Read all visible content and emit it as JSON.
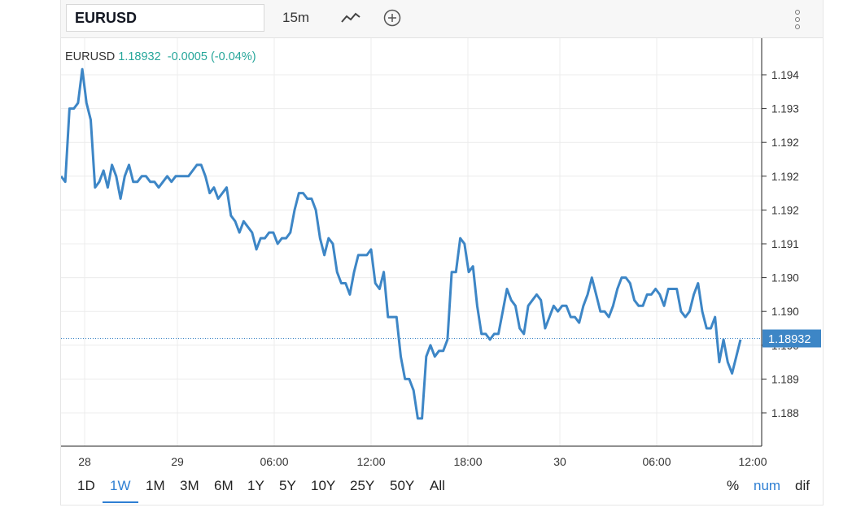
{
  "toolbar": {
    "symbol_value": "EURUSD",
    "interval": "15m",
    "icons": [
      "line-chart-icon",
      "plus-circle-icon",
      "more-vertical-icon"
    ]
  },
  "legend": {
    "symbol": "EURUSD",
    "price": "1.18932",
    "change": "-0.0005 (-0.04%)"
  },
  "price_label": "1.18932",
  "ranges": [
    "1D",
    "1W",
    "1M",
    "3M",
    "6M",
    "1Y",
    "5Y",
    "10Y",
    "25Y",
    "50Y",
    "All"
  ],
  "active_range": "1W",
  "modes": [
    "%",
    "num",
    "dif"
  ],
  "active_mode": "num",
  "colors": {
    "line": "#3d86c6",
    "change_text": "#26a69a",
    "active": "#2e7fd3",
    "price_tag": "#3d86c6"
  },
  "chart_data": {
    "type": "line",
    "series": [
      {
        "values": [
          1.1922,
          1.1921,
          1.1934,
          1.1934,
          1.1935,
          1.1941,
          1.1935,
          1.1932,
          1.192,
          1.1921,
          1.1923,
          1.192,
          1.1924,
          1.1922,
          1.1918,
          1.1922,
          1.1924,
          1.1921,
          1.1921,
          1.1922,
          1.1922,
          1.1921,
          1.1921,
          1.192,
          1.1921,
          1.1922,
          1.1921,
          1.1922,
          1.1922,
          1.1922,
          1.1922,
          1.1923,
          1.1924,
          1.1924,
          1.1922,
          1.1919,
          1.192,
          1.1918,
          1.1919,
          1.192,
          1.1915,
          1.1914,
          1.1912,
          1.1914,
          1.1913,
          1.1912,
          1.1909,
          1.1911,
          1.1911,
          1.1912,
          1.1912,
          1.191,
          1.1911,
          1.1911,
          1.1912,
          1.1916,
          1.1919,
          1.1919,
          1.1918,
          1.1918,
          1.1916,
          1.1911,
          1.1908,
          1.1911,
          1.191,
          1.1905,
          1.1903,
          1.1903,
          1.1901,
          1.1905,
          1.1908,
          1.1908,
          1.1908,
          1.1909,
          1.1903,
          1.1902,
          1.1905,
          1.1897,
          1.1897,
          1.1897,
          1.189,
          1.1886,
          1.1886,
          1.1884,
          1.1879,
          1.1879,
          1.189,
          1.1892,
          1.189,
          1.1891,
          1.1891,
          1.1893,
          1.1905,
          1.1905,
          1.1911,
          1.191,
          1.1905,
          1.1906,
          1.1899,
          1.1894,
          1.1894,
          1.1893,
          1.1894,
          1.1894,
          1.1898,
          1.1902,
          1.19,
          1.1899,
          1.1895,
          1.1894,
          1.1899,
          1.19,
          1.1901,
          1.19,
          1.1895,
          1.1897,
          1.1899,
          1.1898,
          1.1899,
          1.1899,
          1.1897,
          1.1897,
          1.1896,
          1.1899,
          1.1901,
          1.1904,
          1.1901,
          1.1898,
          1.1898,
          1.1897,
          1.1899,
          1.1902,
          1.1904,
          1.1904,
          1.1903,
          1.19,
          1.1899,
          1.1899,
          1.1901,
          1.1901,
          1.1902,
          1.1901,
          1.1899,
          1.1902,
          1.1902,
          1.1902,
          1.1898,
          1.1897,
          1.1898,
          1.1901,
          1.1903,
          1.1898,
          1.1895,
          1.1895,
          1.1897,
          1.1889,
          1.1893,
          1.1889,
          1.1887,
          1.189,
          1.1893
        ]
      }
    ],
    "x_ticks": [
      "28",
      "29",
      "06:00",
      "12:00",
      "18:00",
      "30",
      "06:00",
      "12:00"
    ],
    "y_ticks": [
      "1.194",
      "1.193",
      "1.192",
      "1.192",
      "1.192",
      "1.191",
      "1.190",
      "1.190",
      "1.190",
      "1.189",
      "1.188"
    ],
    "current_price": 1.18932,
    "grid": true
  }
}
